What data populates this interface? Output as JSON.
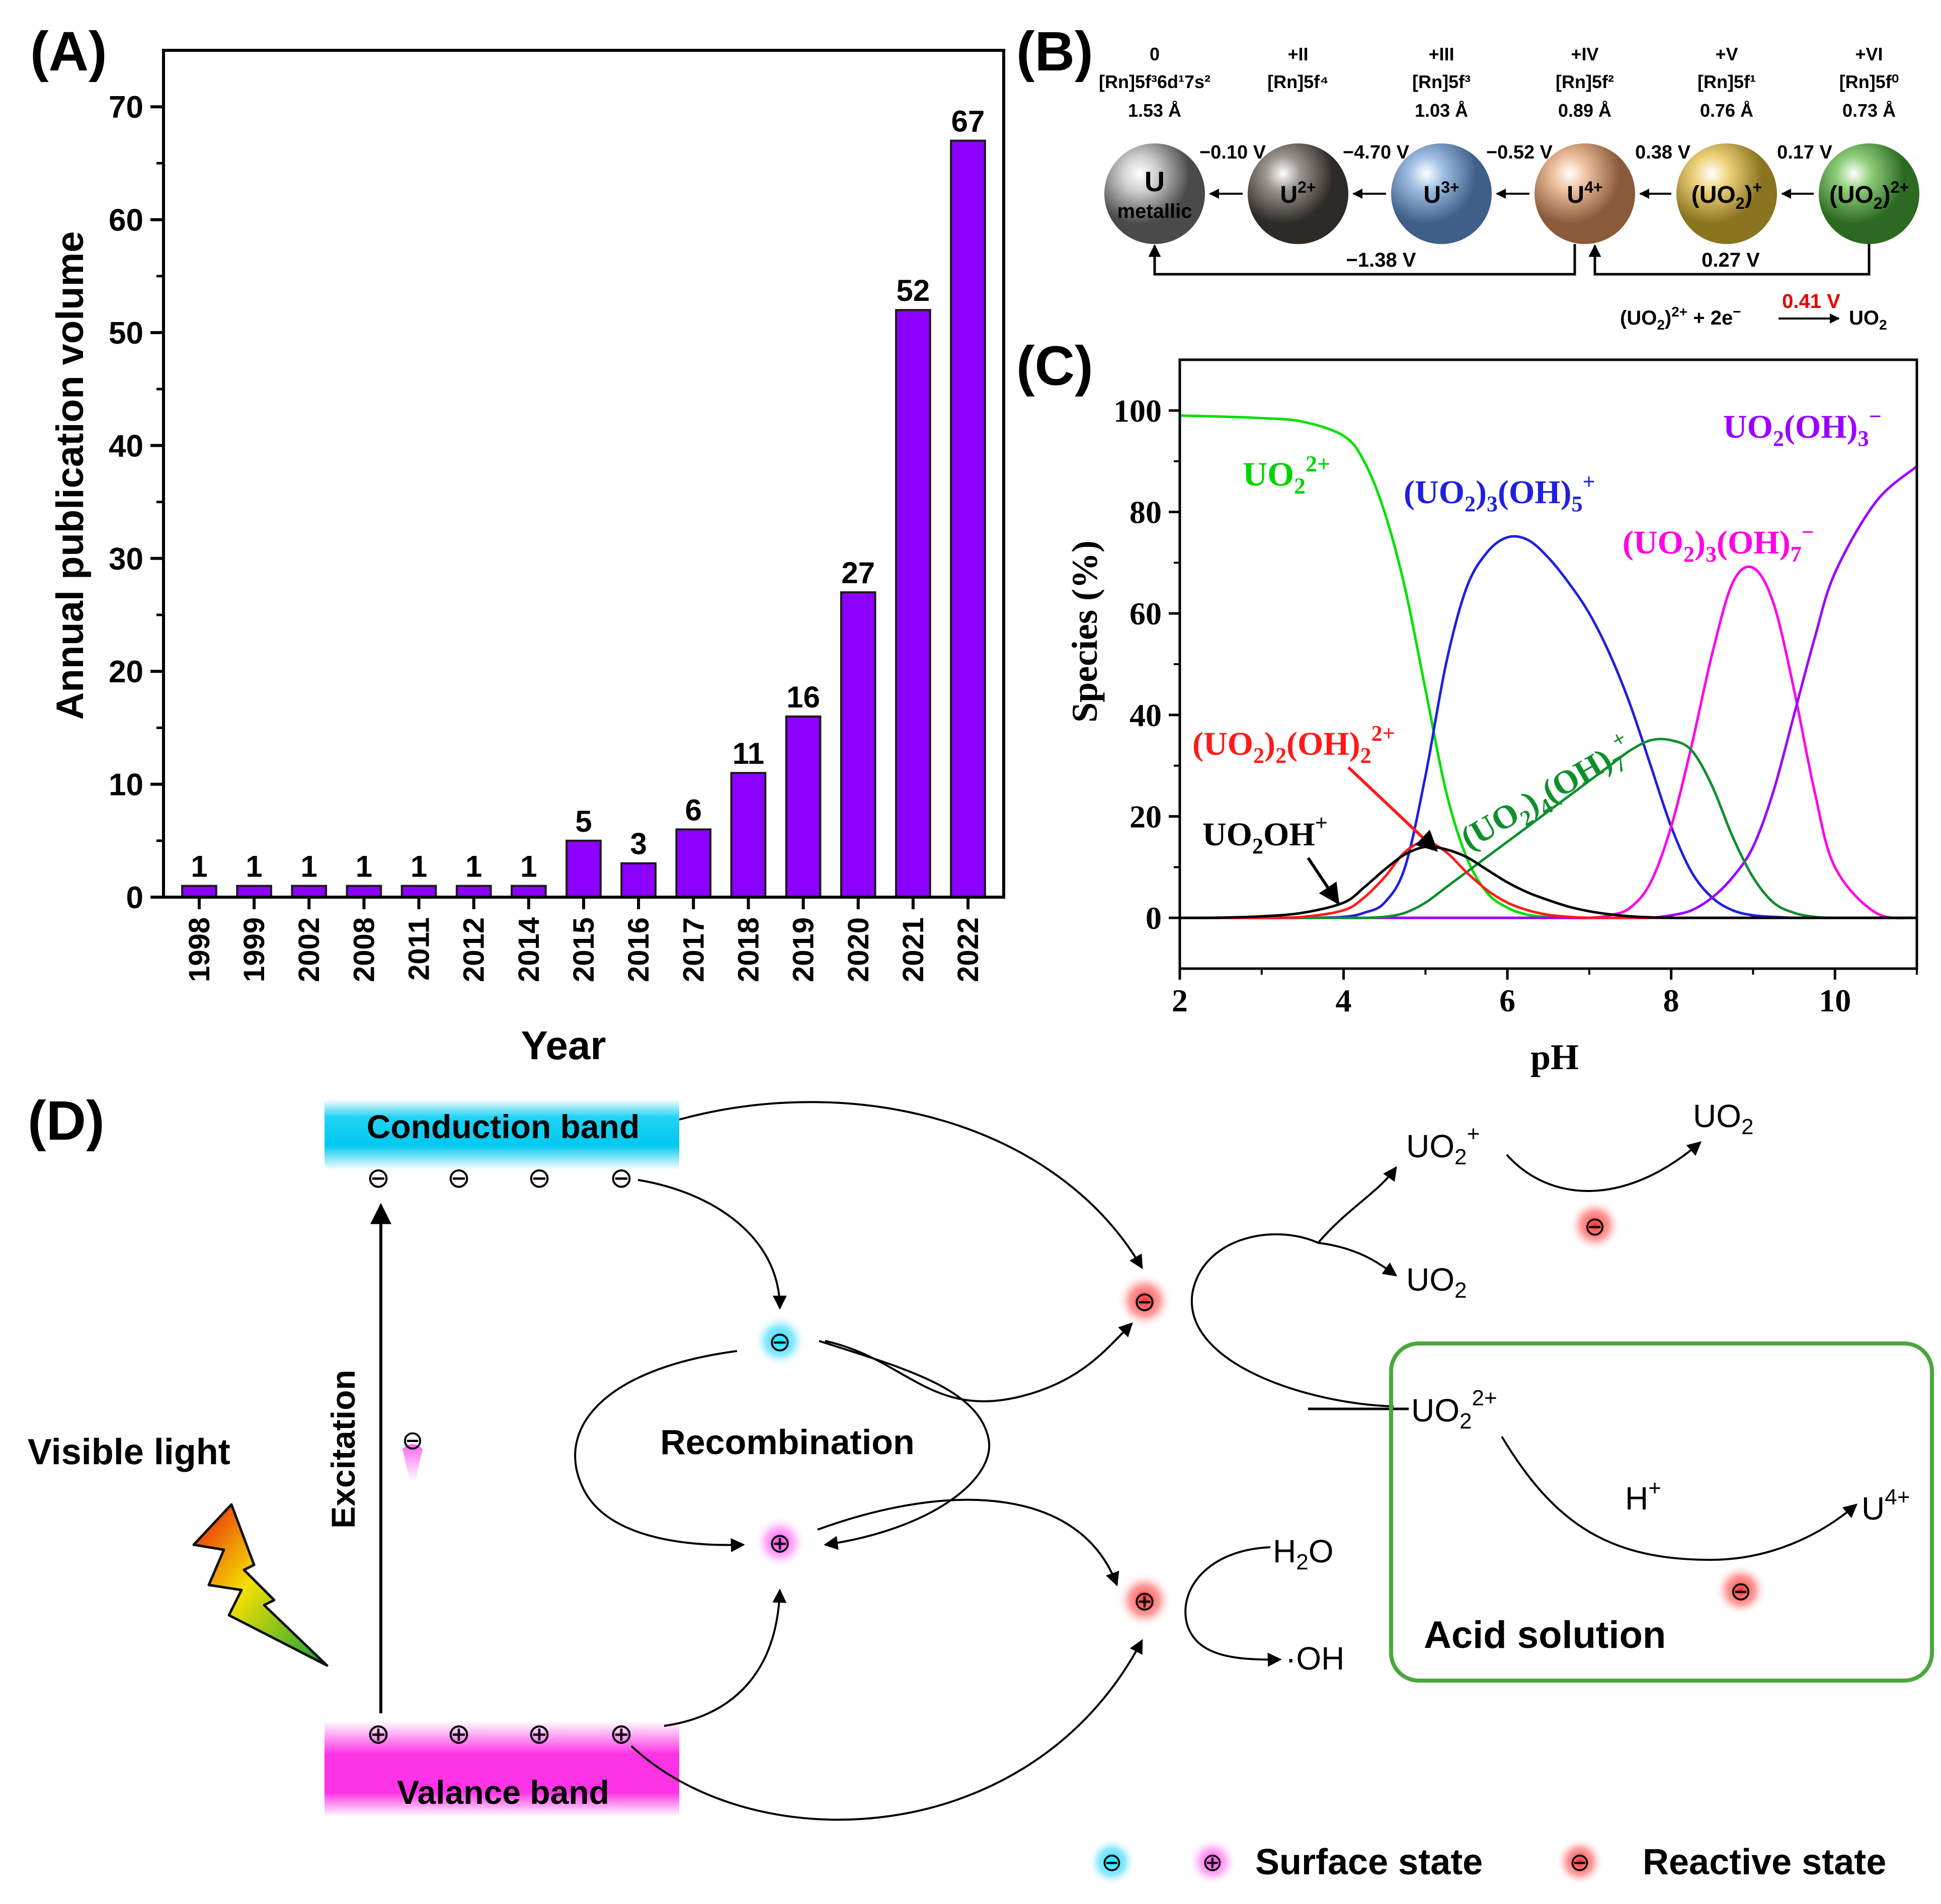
{
  "panel_labels": {
    "a": "(A)",
    "b": "(B)",
    "c": "(C)",
    "d": "(D)"
  },
  "colors": {
    "bar": "#8c00ff",
    "bar_edge": "#1a1a1a",
    "red_text": "#e60000",
    "green_box": "#4aa73c"
  },
  "chart_data": [
    {
      "type": "bar",
      "title": "",
      "xlabel": "Year",
      "ylabel": "Annual publication volume",
      "categories": [
        "1998",
        "1999",
        "2002",
        "2008",
        "2011",
        "2012",
        "2014",
        "2015",
        "2016",
        "2017",
        "2018",
        "2019",
        "2020",
        "2021",
        "2022"
      ],
      "values": [
        1,
        1,
        1,
        1,
        1,
        1,
        1,
        5,
        3,
        6,
        11,
        16,
        27,
        52,
        67
      ],
      "data_labels": [
        "1",
        "1",
        "1",
        "1",
        "1",
        "1",
        "1",
        "5",
        "3",
        "6",
        "11",
        "16",
        "27",
        "52",
        "67"
      ],
      "ylim": [
        0,
        75
      ],
      "yticks": [
        0,
        10,
        20,
        30,
        40,
        50,
        60,
        70
      ],
      "ytick_labels": [
        "0",
        "10",
        "20",
        "30",
        "40",
        "50",
        "60",
        "70"
      ],
      "grid": false
    },
    {
      "type": "line",
      "title": "",
      "xlabel": "pH",
      "ylabel": "Species (%)",
      "xlim": [
        2,
        11
      ],
      "ylim": [
        -10,
        110
      ],
      "xticks": [
        2,
        4,
        6,
        8,
        10
      ],
      "xtick_labels": [
        "2",
        "4",
        "6",
        "8",
        "10"
      ],
      "yticks": [
        0,
        20,
        40,
        60,
        80,
        100
      ],
      "ytick_labels": [
        "0",
        "20",
        "40",
        "60",
        "80",
        "100"
      ],
      "x": [
        2,
        2.5,
        3,
        3.5,
        4,
        4.25,
        4.5,
        4.75,
        5,
        5.25,
        5.5,
        5.75,
        6,
        6.25,
        6.5,
        6.75,
        7,
        7.25,
        7.5,
        7.75,
        8,
        8.25,
        8.5,
        8.75,
        9,
        9.25,
        9.5,
        9.75,
        10,
        10.5,
        11
      ],
      "series": [
        {
          "name": "UO2 2+",
          "color": "#00e000",
          "values": [
            99,
            98.8,
            98.5,
            97.8,
            95,
            90,
            80,
            65,
            45,
            25,
            12,
            5,
            2,
            0.6,
            0.2,
            0,
            0,
            0,
            0,
            0,
            0,
            0,
            0,
            0,
            0,
            0,
            0,
            0,
            0,
            0,
            0
          ]
        },
        {
          "name": "(UO2)3(OH)5 +",
          "color": "#1f1fe0",
          "values": [
            0,
            0,
            0,
            0,
            0.2,
            1,
            3,
            10,
            28,
            50,
            65,
            72,
            75,
            74.5,
            71,
            66,
            60,
            52,
            42,
            30,
            18,
            9,
            4,
            1.5,
            0.5,
            0.2,
            0,
            0,
            0,
            0,
            0
          ]
        },
        {
          "name": "(UO2)3(OH)7 -",
          "color": "#ff00e6",
          "values": [
            0,
            0,
            0,
            0,
            0,
            0,
            0,
            0,
            0,
            0,
            0,
            0,
            0,
            0,
            0,
            0,
            0,
            0.5,
            2,
            7,
            18,
            34,
            52,
            66,
            69,
            62,
            45,
            25,
            10,
            1,
            0
          ]
        },
        {
          "name": "UO2(OH)3 -",
          "color": "#9a00ff",
          "values": [
            0,
            0,
            0,
            0,
            0,
            0,
            0,
            0,
            0,
            0,
            0,
            0,
            0,
            0,
            0,
            0,
            0,
            0,
            0,
            0,
            0.5,
            1.5,
            4,
            8,
            14,
            25,
            40,
            55,
            68,
            82,
            89
          ]
        },
        {
          "name": "(UO2)4(OH)7 +",
          "color": "#0f8f2c",
          "values": [
            0,
            0,
            0,
            0,
            0,
            0,
            0.2,
            1,
            3,
            6,
            9,
            12,
            15,
            18,
            21,
            24,
            27,
            30,
            33,
            35,
            35,
            33,
            26,
            16,
            8,
            3,
            1,
            0.2,
            0,
            0,
            0
          ]
        },
        {
          "name": "(UO2)2(OH)2 2+",
          "color": "#ff1a1a",
          "values": [
            0,
            0,
            0,
            0.2,
            1.5,
            4,
            8,
            13,
            15,
            13,
            9,
            5.5,
            3,
            1.5,
            0.6,
            0.2,
            0,
            0,
            0,
            0,
            0,
            0,
            0,
            0,
            0,
            0,
            0,
            0,
            0,
            0,
            0
          ]
        },
        {
          "name": "UO2OH+",
          "color": "#000000",
          "values": [
            0,
            0.05,
            0.3,
            1,
            3,
            6,
            9.5,
            12.5,
            14,
            13.5,
            12,
            9.5,
            7,
            5,
            3.5,
            2.2,
            1.3,
            0.7,
            0.3,
            0.1,
            0,
            0,
            0,
            0,
            0,
            0,
            0,
            0,
            0,
            0,
            0
          ]
        }
      ],
      "annotations": {
        "uo2_2p": {
          "base": "UO",
          "sub": "2",
          "sup": "2+"
        },
        "u3oh5": {
          "a": "(UO",
          "s1": "2",
          "b": ")",
          "s2": "3",
          "c": "(OH)",
          "s3": "5",
          "sup": "+"
        },
        "u3oh7": {
          "a": "(UO",
          "s1": "2",
          "b": ")",
          "s2": "3",
          "c": "(OH)",
          "s3": "7",
          "sup": "−"
        },
        "uoh3": {
          "a": "UO",
          "s1": "2",
          "b": "(OH)",
          "s2": "3",
          "sup": "−"
        },
        "u4oh7": {
          "a": "(UO",
          "s1": "2",
          "b": ")",
          "s2": "4",
          "c": "(OH)",
          "s3": "7",
          "sup": "+"
        },
        "u2oh2": {
          "a": "(UO",
          "s1": "2",
          "b": ")",
          "s2": "2",
          "c": "(OH)",
          "s3": "2",
          "sup": "2+"
        },
        "uooh": {
          "a": "UO",
          "s1": "2",
          "b": "OH",
          "sup": "+"
        }
      }
    }
  ],
  "panel_b": {
    "states": [
      {
        "ox": "0",
        "config": "[Rn]5f³6d¹7s²",
        "radius": "1.53 Å",
        "label": "U",
        "sublabel": "metallic",
        "color": "#b5b5b5"
      },
      {
        "ox": "+II",
        "config": "[Rn]5f⁴",
        "radius": "",
        "label": "U",
        "sup": "2+",
        "color": "#8a8580"
      },
      {
        "ox": "+III",
        "config": "[Rn]5f³",
        "radius": "1.03 Å",
        "label": "U",
        "sup": "3+",
        "color": "#8fb2da"
      },
      {
        "ox": "+IV",
        "config": "[Rn]5f²",
        "radius": "0.89 Å",
        "label": "U",
        "sup": "4+",
        "color": "#e7b58f"
      },
      {
        "ox": "+V",
        "config": "[Rn]5f¹",
        "radius": "0.76 Å",
        "label": "(UO",
        "sub": "2",
        "close": ")",
        "sup": "+",
        "color": "#e9c96a"
      },
      {
        "ox": "+VI",
        "config": "[Rn]5f⁰",
        "radius": "0.73 Å",
        "label": "(UO",
        "sub": "2",
        "close": ")",
        "sup": "2+",
        "color": "#7fbf6a"
      }
    ],
    "potentials": [
      "−0.10 V",
      "−4.70 V",
      "−0.52 V",
      "0.38 V",
      "0.17 V"
    ],
    "long_arrows": [
      "−1.38 V",
      "0.27 V"
    ],
    "reaction": {
      "lhs": "(UO",
      "sub": "2",
      "rhs_close": ")",
      "sup": "2+",
      "plus": " + 2e",
      "e_sup": "−",
      "potential": "0.41 V",
      "product": "UO",
      "product_sub": "2"
    }
  },
  "panel_d": {
    "conduction_band": "Conduction band",
    "valance_band": "Valance band",
    "excitation": "Excitation",
    "visible_light": "Visible light",
    "recombination": "Recombination",
    "minus": "⊖",
    "plus": "⊕",
    "h2o": {
      "a": "H",
      "sub": "2",
      "b": "O"
    },
    "oh": "·OH",
    "uo2p": {
      "a": "UO",
      "sub": "2",
      "sup": "+"
    },
    "uo2_top": {
      "a": "UO",
      "sub": "2"
    },
    "uo2_mid": {
      "a": "UO",
      "sub": "2"
    },
    "uo22p": {
      "a": "UO",
      "sub": "2",
      "sup": "2+"
    },
    "hplus": {
      "a": "H",
      "sup": "+"
    },
    "u4p": {
      "a": "U",
      "sup": "4+"
    },
    "acid_solution": "Acid solution",
    "legend_surface": "Surface state",
    "legend_reactive": "Reactive state"
  }
}
